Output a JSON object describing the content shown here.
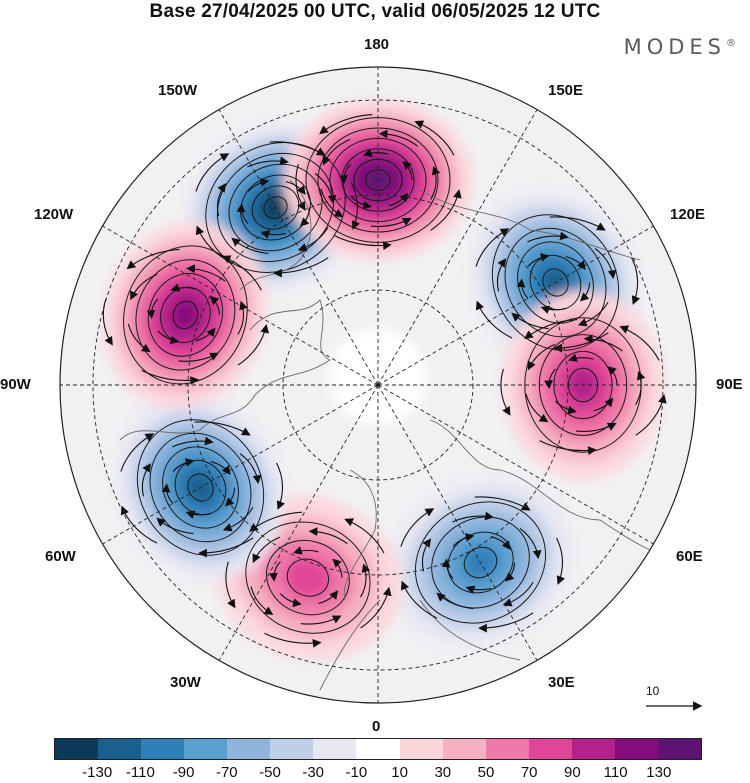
{
  "header": {
    "title": "Base 27/04/2025 00 UTC, valid 06/05/2025 12 UTC",
    "brand": "MODES",
    "brand_mark": "®"
  },
  "map": {
    "projection": "north-polar-stereographic",
    "longitude_labels": {
      "n180": "180",
      "e150": "150E",
      "e120": "120E",
      "e90": "90E",
      "e60": "60E",
      "e30": "30E",
      "zero": "0",
      "w30": "30W",
      "w60": "60W",
      "w90": "90W",
      "w120": "120W",
      "w150": "150W"
    },
    "reference_vector_label": "10",
    "anomaly_centers": [
      {
        "sign": "negative",
        "lon": "150W",
        "peak": -130
      },
      {
        "sign": "positive",
        "lon": "180",
        "peak": 130
      },
      {
        "sign": "negative",
        "lon": "120E",
        "peak": -110
      },
      {
        "sign": "positive",
        "lon": "90E",
        "peak": 90
      },
      {
        "sign": "negative",
        "lon": "30E",
        "peak": -90
      },
      {
        "sign": "positive",
        "lon": "20W",
        "peak": 70
      },
      {
        "sign": "negative",
        "lon": "60W",
        "peak": -110
      },
      {
        "sign": "positive",
        "lon": "110W",
        "peak": 110
      }
    ]
  },
  "colorbar": {
    "tick_labels": [
      "-130",
      "-110",
      "-90",
      "-70",
      "-50",
      "-30",
      "-10",
      "10",
      "30",
      "50",
      "70",
      "90",
      "110",
      "130"
    ],
    "colors": [
      "#0e3a5a",
      "#1a5f8e",
      "#2f7fb8",
      "#5b9fcf",
      "#8fb5dd",
      "#c0cfe8",
      "#e7e7f2",
      "#ffffff",
      "#fbd7dc",
      "#f6b1c2",
      "#ef79a8",
      "#e14598",
      "#b3228a",
      "#850c7c",
      "#5c1372"
    ]
  }
}
